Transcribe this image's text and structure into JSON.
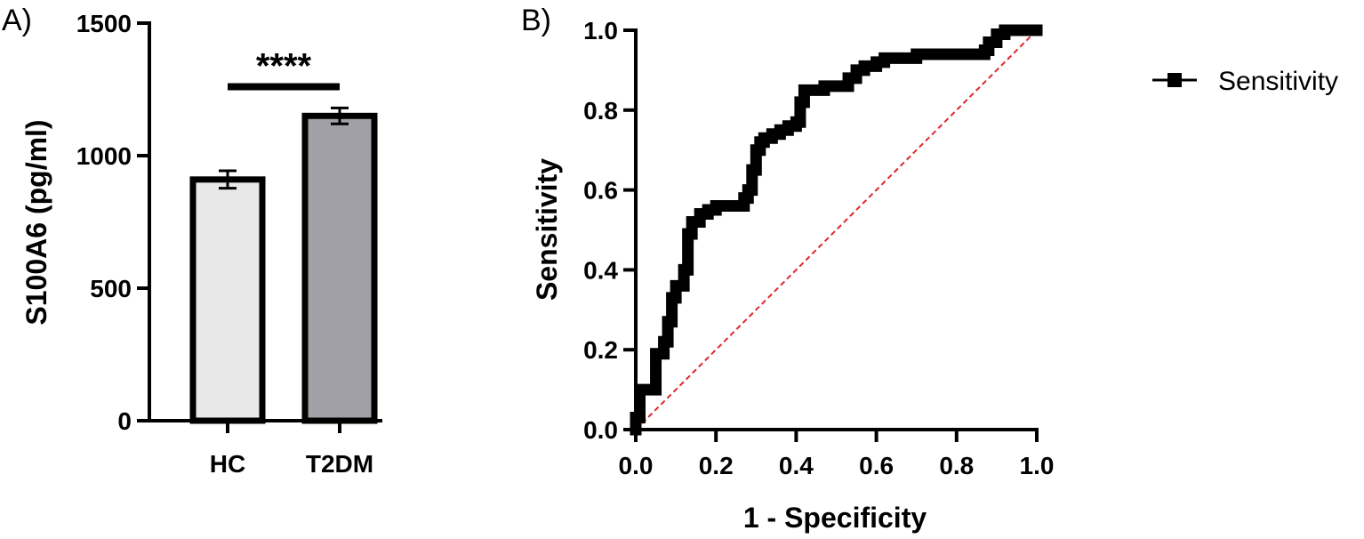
{
  "colors": {
    "axis": "#000000",
    "bar_hc": "#e8e8e8",
    "bar_t2dm": "#a0a0a6",
    "roc_line": "#000000",
    "reference_line": "#e0262b"
  },
  "chart_data": [
    {
      "panel": "A)",
      "type": "bar",
      "title": "",
      "xlabel": "",
      "ylabel": "S100A6 (pg/ml)",
      "ylim": [
        0,
        1500
      ],
      "yticks": [
        0,
        500,
        1000,
        1500
      ],
      "categories": [
        "HC",
        "T2DM"
      ],
      "values": [
        910,
        1150
      ],
      "errors": [
        33,
        30
      ],
      "significance": {
        "label": "****",
        "between": [
          "HC",
          "T2DM"
        ],
        "y": 1260
      }
    },
    {
      "panel": "B)",
      "type": "line",
      "title": "",
      "xlabel": "1 - Specificity",
      "ylabel": "Sensitivity",
      "xlim": [
        0,
        1
      ],
      "ylim": [
        0,
        1
      ],
      "xticks": [
        0.0,
        0.2,
        0.4,
        0.6,
        0.8,
        1.0
      ],
      "yticks": [
        0.0,
        0.2,
        0.4,
        0.6,
        0.8,
        1.0
      ],
      "tick_labels": [
        "0.0",
        "0.2",
        "0.4",
        "0.6",
        "0.8",
        "1.0"
      ],
      "legend": {
        "label": "Sensitivity",
        "placement": "right"
      },
      "reference_line": {
        "x": [
          0,
          1
        ],
        "y": [
          0,
          1
        ],
        "style": "dashed"
      },
      "series": [
        {
          "name": "Sensitivity",
          "x": [
            0.0,
            0.0,
            0.01,
            0.01,
            0.03,
            0.05,
            0.05,
            0.07,
            0.08,
            0.09,
            0.1,
            0.12,
            0.13,
            0.13,
            0.14,
            0.16,
            0.18,
            0.2,
            0.22,
            0.24,
            0.26,
            0.27,
            0.28,
            0.29,
            0.3,
            0.31,
            0.32,
            0.34,
            0.36,
            0.38,
            0.4,
            0.41,
            0.42,
            0.44,
            0.47,
            0.5,
            0.53,
            0.55,
            0.57,
            0.6,
            0.62,
            0.65,
            0.7,
            0.75,
            0.8,
            0.85,
            0.87,
            0.88,
            0.9,
            0.92,
            0.95,
            1.0
          ],
          "y": [
            0.0,
            0.03,
            0.05,
            0.1,
            0.1,
            0.12,
            0.19,
            0.22,
            0.27,
            0.33,
            0.36,
            0.4,
            0.45,
            0.49,
            0.52,
            0.54,
            0.55,
            0.56,
            0.56,
            0.56,
            0.56,
            0.58,
            0.6,
            0.65,
            0.7,
            0.72,
            0.73,
            0.74,
            0.75,
            0.76,
            0.77,
            0.82,
            0.85,
            0.85,
            0.86,
            0.86,
            0.88,
            0.9,
            0.91,
            0.92,
            0.93,
            0.93,
            0.94,
            0.94,
            0.94,
            0.94,
            0.95,
            0.97,
            0.99,
            1.0,
            1.0,
            1.0
          ]
        }
      ]
    }
  ]
}
